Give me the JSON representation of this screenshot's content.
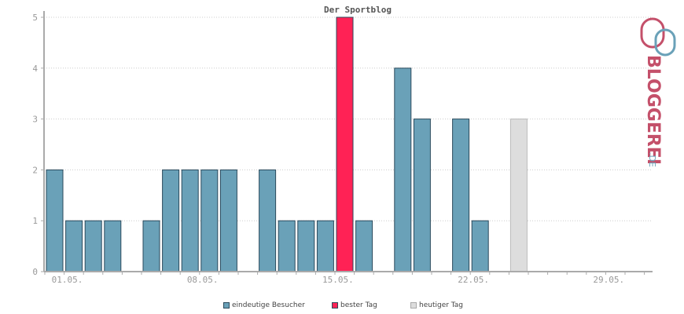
{
  "chart_data": {
    "type": "bar",
    "title": "Der Sportblog",
    "x_tick_labels": [
      "01.05.",
      "08.05.",
      "15.05.",
      "22.05.",
      "29.05."
    ],
    "y_tick_labels": [
      "0",
      "1",
      "2",
      "3",
      "4",
      "5"
    ],
    "ylim": [
      0,
      5
    ],
    "grid": true,
    "days": [
      "01.05.",
      "02.05.",
      "03.05.",
      "04.05.",
      "05.05.",
      "06.05.",
      "07.05.",
      "08.05.",
      "09.05.",
      "10.05.",
      "11.05.",
      "12.05.",
      "13.05.",
      "14.05.",
      "15.05.",
      "16.05.",
      "17.05.",
      "18.05.",
      "19.05.",
      "20.05.",
      "21.05.",
      "22.05.",
      "23.05.",
      "24.05.",
      "25.05.",
      "26.05.",
      "27.05.",
      "28.05.",
      "29.05.",
      "30.05.",
      "31.05."
    ],
    "values": [
      2,
      1,
      1,
      1,
      0,
      1,
      2,
      2,
      2,
      2,
      0,
      2,
      1,
      1,
      1,
      5,
      1,
      0,
      4,
      3,
      0,
      3,
      1,
      0,
      3,
      0,
      0,
      0,
      0,
      0,
      0
    ],
    "series_kind": [
      "visitor",
      "visitor",
      "visitor",
      "visitor",
      "visitor",
      "visitor",
      "visitor",
      "visitor",
      "visitor",
      "visitor",
      "visitor",
      "visitor",
      "visitor",
      "visitor",
      "visitor",
      "best",
      "visitor",
      "visitor",
      "visitor",
      "visitor",
      "visitor",
      "visitor",
      "visitor",
      "visitor",
      "today",
      "visitor",
      "visitor",
      "visitor",
      "visitor",
      "visitor",
      "visitor"
    ],
    "legend_position": "bottom",
    "legend": [
      {
        "key": "visitor",
        "label": "eindeutige Besucher",
        "color": "#6aa1b8"
      },
      {
        "key": "best",
        "label": "bester Tag",
        "color": "#ff2255"
      },
      {
        "key": "today",
        "label": "heutiger Tag",
        "color": "#dddddd"
      }
    ],
    "colors": {
      "axis": "#aaaaaa",
      "grid": "#cccccc",
      "bar_stroke": "#2b4a5c",
      "today_stroke": "#bbbbbb"
    }
  },
  "logo": {
    "text": "BLOGGEREI",
    "suffix": ".DE",
    "colors": {
      "primary": "#c4506a",
      "secondary": "#6aa1b8"
    }
  }
}
